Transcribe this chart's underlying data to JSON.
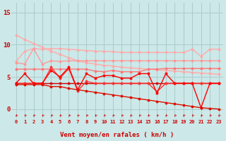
{
  "background_color": "#cce8e8",
  "grid_color": "#aacccc",
  "x_label": "Vent moyen/en rafales ( km/h )",
  "x_ticks": [
    0,
    1,
    2,
    3,
    4,
    5,
    6,
    7,
    8,
    9,
    10,
    11,
    12,
    13,
    14,
    15,
    16,
    17,
    18,
    19,
    20,
    21,
    22,
    23
  ],
  "y_ticks": [
    0,
    5,
    10,
    15
  ],
  "ylim": [
    -1.5,
    16.5
  ],
  "xlim": [
    -0.5,
    23.5
  ],
  "lines": [
    {
      "color": "#ffaaaa",
      "lw": 1.0,
      "marker": "o",
      "ms": 1.8,
      "y": [
        11.5,
        10.8,
        10.2,
        9.6,
        9.0,
        8.5,
        8.0,
        7.5,
        7.2,
        7.0,
        6.8,
        6.7,
        6.5,
        6.4,
        6.3,
        6.2,
        6.1,
        6.0,
        5.9,
        5.8,
        5.7,
        5.6,
        5.5,
        5.4
      ]
    },
    {
      "color": "#ffaaaa",
      "lw": 1.0,
      "marker": "o",
      "ms": 1.8,
      "y": [
        7.4,
        9.0,
        9.4,
        9.3,
        9.4,
        9.4,
        9.3,
        9.2,
        9.1,
        9.0,
        9.0,
        8.9,
        8.8,
        8.8,
        8.8,
        8.8,
        8.8,
        8.8,
        8.8,
        8.8,
        9.3,
        8.2,
        9.3,
        9.3
      ]
    },
    {
      "color": "#ff9999",
      "lw": 1.0,
      "marker": "o",
      "ms": 1.8,
      "y": [
        7.2,
        7.0,
        9.4,
        7.0,
        7.5,
        7.4,
        7.5,
        7.5,
        7.5,
        7.5,
        7.5,
        7.5,
        7.5,
        7.5,
        7.5,
        7.5,
        7.5,
        7.5,
        7.5,
        7.5,
        7.5,
        7.5,
        7.5,
        7.5
      ]
    },
    {
      "color": "#ff7777",
      "lw": 1.0,
      "marker": "o",
      "ms": 1.8,
      "y": [
        6.2,
        6.2,
        6.2,
        6.2,
        6.2,
        6.2,
        6.2,
        6.2,
        6.2,
        5.9,
        5.8,
        6.0,
        5.8,
        5.8,
        5.8,
        6.2,
        6.2,
        6.3,
        6.3,
        6.3,
        6.3,
        6.3,
        6.3,
        6.3
      ]
    },
    {
      "color": "#cc0000",
      "lw": 1.0,
      "marker": "s",
      "ms": 2.0,
      "y": [
        4.0,
        4.0,
        4.0,
        4.0,
        4.0,
        4.0,
        4.0,
        4.0,
        4.0,
        4.0,
        4.0,
        4.0,
        4.0,
        4.0,
        4.0,
        4.0,
        4.0,
        4.0,
        4.0,
        4.0,
        4.0,
        4.0,
        4.0,
        4.0
      ]
    },
    {
      "color": "#ff3333",
      "lw": 1.0,
      "marker": "o",
      "ms": 1.8,
      "y": [
        4.0,
        4.0,
        4.0,
        4.0,
        6.5,
        4.8,
        6.3,
        2.8,
        4.3,
        4.0,
        4.0,
        4.0,
        4.0,
        4.0,
        4.0,
        4.0,
        2.7,
        4.0,
        4.0,
        4.0,
        4.0,
        4.0,
        4.0,
        4.0
      ]
    },
    {
      "color": "#ff0000",
      "lw": 1.0,
      "marker": "o",
      "ms": 1.8,
      "y": [
        4.0,
        5.5,
        4.0,
        4.0,
        6.0,
        5.0,
        6.5,
        3.0,
        5.5,
        4.8,
        5.2,
        5.2,
        4.8,
        4.8,
        5.5,
        5.5,
        2.5,
        5.5,
        4.0,
        4.0,
        4.0,
        0.2,
        4.0,
        4.0
      ]
    },
    {
      "color": "#dd1100",
      "lw": 1.0,
      "marker": "o",
      "ms": 1.8,
      "y": [
        3.8,
        3.8,
        3.8,
        3.8,
        3.5,
        3.5,
        3.2,
        3.0,
        2.8,
        2.6,
        2.4,
        2.2,
        2.0,
        1.8,
        1.6,
        1.4,
        1.2,
        1.0,
        0.8,
        0.6,
        0.4,
        0.2,
        0.1,
        0.0
      ]
    }
  ],
  "arrow_color": "#cc0000",
  "label_color": "#cc0000",
  "tick_color": "#cc0000"
}
